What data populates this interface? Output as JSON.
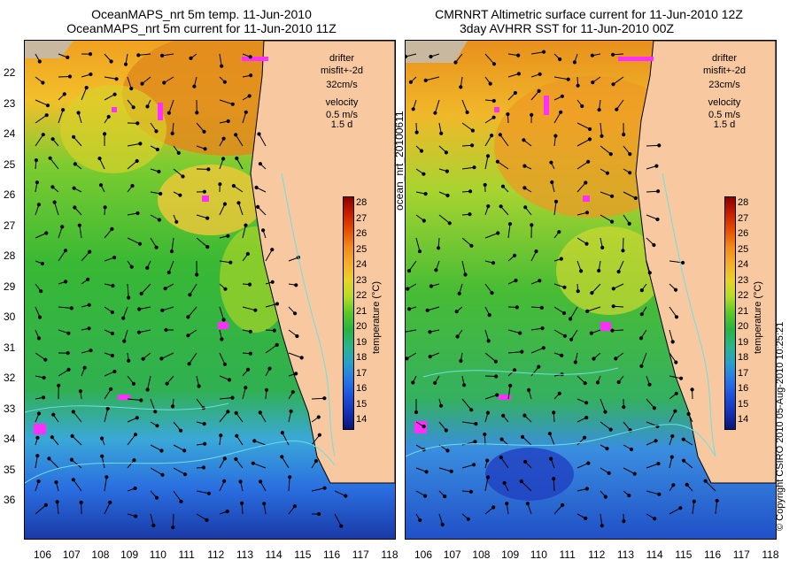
{
  "left_panel": {
    "title_line1": "OceanMAPS_nrt 5m temp. 11-Jun-2010",
    "title_line2": "OceanMAPS_nrt 5m current for 11-Jun-2010 11Z",
    "drifter_label": "drifter",
    "misfit_label": "misfit+-2d",
    "drifter_speed": "32cm/s",
    "velocity_label": "velocity",
    "velocity_scale": "0.5 m/s",
    "velocity_days": "1.5 d"
  },
  "right_panel": {
    "title_line1": "CMRNRT Altimetric surface current for 11-Jun-2010 12Z",
    "title_line2": "3day AVHRR SST for 11-Jun-2010 00Z",
    "drifter_label": "drifter",
    "misfit_label": "misfit+-2d",
    "drifter_speed": "23cm/s",
    "velocity_label": "velocity",
    "velocity_scale": "0.5 m/s",
    "velocity_days": "1.5 d"
  },
  "center_label": "ocean_nrt_20100611",
  "copyright": "© Copyright CSIRO 2010   05-Aug-2010 10:25:21",
  "axes": {
    "lon_ticks": [
      "106",
      "107",
      "108",
      "109",
      "110",
      "111",
      "112",
      "113",
      "114",
      "115",
      "116",
      "117",
      "118"
    ],
    "lat_ticks": [
      "22",
      "23",
      "24",
      "25",
      "26",
      "27",
      "28",
      "29",
      "30",
      "31",
      "32",
      "33",
      "34",
      "35",
      "36"
    ]
  },
  "colorbar": {
    "label": "temperature (°C)",
    "ticks": [
      "28",
      "27",
      "26",
      "25",
      "24",
      "23",
      "22",
      "21",
      "20",
      "19",
      "18",
      "17",
      "16",
      "15",
      "14"
    ],
    "colors": [
      "#8b0000",
      "#c81e00",
      "#e65000",
      "#f08a1c",
      "#f4ae2a",
      "#e8d22a",
      "#b4dc28",
      "#5ac828",
      "#28b440",
      "#2ab48c",
      "#29a0c8",
      "#2878e6",
      "#1e50dc",
      "#1432b4",
      "#0a1478"
    ]
  }
}
